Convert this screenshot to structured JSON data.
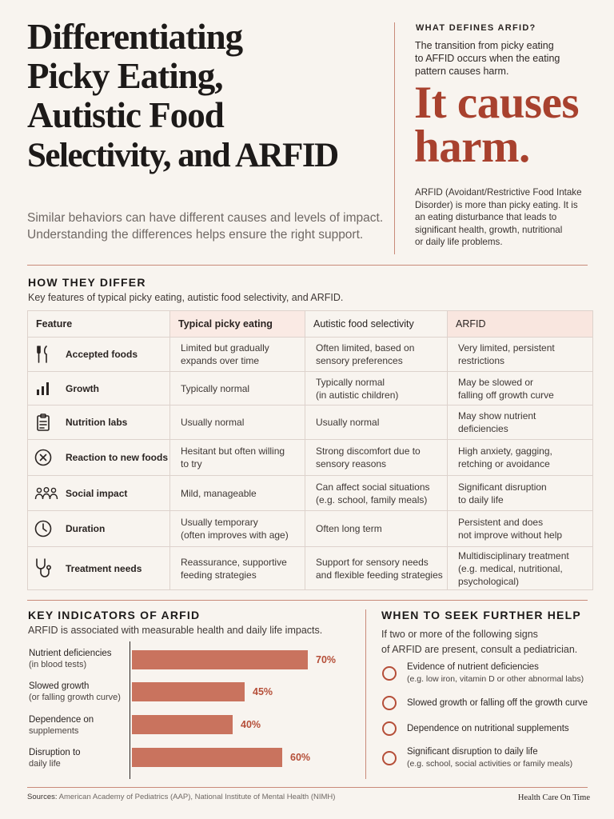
{
  "header": {
    "title_lines": [
      "Differentiating",
      "Picky Eating,",
      "Autistic Food",
      "Selectivity, and ARFID"
    ],
    "subtitle_lines": [
      "Similar behaviors can have different causes and levels of impact.",
      "Understanding the differences helps ensure the right support."
    ]
  },
  "definition": {
    "heading": "WHAT DEFINES ARFID?",
    "intro_lines": [
      "The transition from picky eating",
      "to AFFID occurs when the eating",
      "pattern causes harm."
    ],
    "callout_lines": [
      "It causes",
      "harm."
    ],
    "body_lines": [
      "ARFID (Avoidant/Restrictive Food Intake",
      "Disorder) is more than picky eating. It is",
      "an eating disturbance that leads to",
      "significant health, growth, nutritional",
      "or daily life problems."
    ]
  },
  "differ": {
    "heading": "HOW THEY DIFFER",
    "description": "Key features of typical picky eating, autistic food selectivity, and ARFID.",
    "columns": [
      "Feature",
      "Typical picky eating",
      "Autistic food selectivity",
      "ARFID"
    ],
    "rows": [
      {
        "icon": "utensils-icon",
        "feature": "Accepted foods",
        "picky": [
          "Limited but gradually",
          "expands over time"
        ],
        "autistic": [
          "Often limited, based on",
          "sensory preferences"
        ],
        "arfid": [
          "Very limited, persistent",
          "restrictions"
        ]
      },
      {
        "icon": "bar-chart-icon",
        "feature": "Growth",
        "picky": [
          "Typically normal"
        ],
        "autistic": [
          "Typically normal",
          "(in autistic children)"
        ],
        "arfid": [
          "May be slowed or",
          "falling off growth curve"
        ]
      },
      {
        "icon": "clipboard-icon",
        "feature": "Nutrition labs",
        "picky": [
          "Usually normal"
        ],
        "autistic": [
          "Usually normal"
        ],
        "arfid": [
          "May show nutrient",
          "deficiencies"
        ]
      },
      {
        "icon": "x-circle-icon",
        "feature": "Reaction to new foods",
        "picky": [
          "Hesitant but often willing",
          "to try"
        ],
        "autistic": [
          "Strong discomfort due to",
          "sensory reasons"
        ],
        "arfid": [
          "High anxiety, gagging,",
          "retching or avoidance"
        ]
      },
      {
        "icon": "people-icon",
        "feature": "Social impact",
        "picky": [
          "Mild, manageable"
        ],
        "autistic": [
          "Can affect social situations",
          "(e.g. school, family meals)"
        ],
        "arfid": [
          "Significant disruption",
          "to daily life"
        ]
      },
      {
        "icon": "clock-icon",
        "feature": "Duration",
        "picky": [
          "Usually temporary",
          "(often improves with age)"
        ],
        "autistic": [
          "Often long term"
        ],
        "arfid": [
          "Persistent and does",
          "not improve without help"
        ]
      },
      {
        "icon": "stethoscope-icon",
        "feature": "Treatment needs",
        "picky": [
          "Reassurance, supportive",
          "feeding strategies"
        ],
        "autistic": [
          "Support for sensory needs",
          "and flexible feeding strategies"
        ],
        "arfid": [
          "Multidisciplinary treatment",
          "(e.g. medical, nutritional,",
          "psychological)"
        ]
      }
    ]
  },
  "indicators": {
    "heading": "KEY INDICATORS OF ARFID",
    "description": "ARFID is associated with measurable health and daily life impacts."
  },
  "chart_data": {
    "type": "bar",
    "orientation": "horizontal",
    "categories": [
      {
        "label": "Nutrient deficiencies",
        "sub": "(in blood tests)"
      },
      {
        "label": "Slowed growth",
        "sub": "(or falling growth curve)"
      },
      {
        "label": "Dependence on",
        "sub": "supplements"
      },
      {
        "label": "Disruption to",
        "sub": "daily life"
      }
    ],
    "values": [
      70,
      45,
      40,
      60
    ],
    "value_labels": [
      "70%",
      "45%",
      "40%",
      "60%"
    ],
    "unit": "%",
    "xlim": [
      0,
      100
    ],
    "bar_color": "#c9735e",
    "label_color": "#b54e38"
  },
  "help": {
    "heading": "WHEN TO SEEK FURTHER HELP",
    "intro_lines": [
      "If two or more of the following signs",
      "of ARFID are present, consult a pediatrician."
    ],
    "items": [
      {
        "text": "Evidence of nutrient deficiencies",
        "sub": "(e.g. low iron, vitamin D or other abnormal labs)"
      },
      {
        "text": "Slowed growth or falling off the growth curve",
        "sub": ""
      },
      {
        "text": "Dependence on nutritional supplements",
        "sub": ""
      },
      {
        "text": "Significant disruption to daily life",
        "sub": "(e.g. school, social activities or family meals)"
      }
    ]
  },
  "footer": {
    "sources_label": "Sources:",
    "sources": "American Academy of Pediatrics (AAP), National Institute of Mental Health (NIMH)",
    "brand": "Health Care On Time"
  },
  "colors": {
    "background": "#f8f4ef",
    "accent": "#a8412e",
    "bar": "#c9735e",
    "rule": "#c98a79",
    "text": "#2a2422"
  }
}
